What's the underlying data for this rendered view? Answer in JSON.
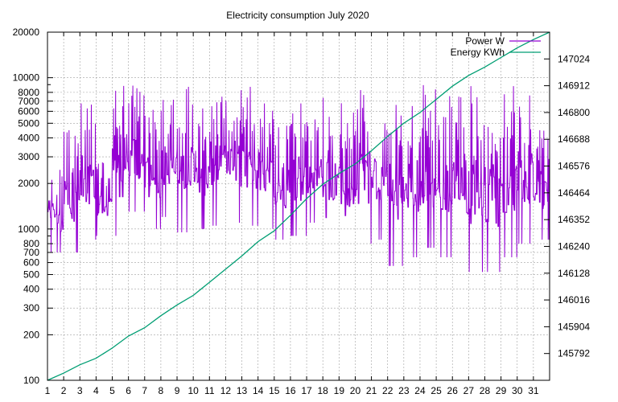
{
  "chart_data": {
    "type": "line",
    "title": "Electricity consumption July 2020",
    "x": {
      "ticks": [
        "1",
        "2",
        "3",
        "4",
        "5",
        "6",
        "7",
        "8",
        "9",
        "10",
        "11",
        "12",
        "13",
        "14",
        "15",
        "16",
        "17",
        "18",
        "19",
        "20",
        "21",
        "22",
        "23",
        "24",
        "25",
        "26",
        "27",
        "28",
        "29",
        "30",
        "31"
      ],
      "range": [
        1,
        32
      ]
    },
    "y_left": {
      "scale": "log",
      "range": [
        100,
        20000
      ],
      "ticks": [
        100,
        200,
        300,
        400,
        500,
        600,
        700,
        800,
        1000,
        2000,
        3000,
        4000,
        5000,
        6000,
        7000,
        8000,
        10000,
        20000
      ]
    },
    "y_right": {
      "range": [
        145680,
        147136
      ],
      "ticks": [
        145792,
        145904,
        146016,
        146128,
        146240,
        146352,
        146464,
        146576,
        146688,
        146800,
        146912,
        147024
      ]
    },
    "grid": true,
    "legend_position": "top-right",
    "series": [
      {
        "name": "Power W",
        "axis": "left",
        "color": "#9400d3",
        "day_envelope_min": [
          700,
          700,
          850,
          900,
          900,
          1300,
          1000,
          1200,
          950,
          1000,
          1050,
          1100,
          1050,
          1000,
          850,
          900,
          1100,
          600,
          650,
          800,
          850,
          570,
          650,
          750,
          650,
          600,
          520,
          520,
          650,
          800,
          850
        ],
        "day_envelope_max": [
          2500,
          4500,
          7000,
          3000,
          9000,
          9000,
          6500,
          8000,
          9000,
          7000,
          8000,
          9000,
          9000,
          7000,
          5500,
          7000,
          6000,
          9000,
          7000,
          9000,
          7000,
          8000,
          9000,
          9000,
          9000,
          8000,
          9000,
          8000,
          9000,
          9000,
          5000
        ]
      },
      {
        "name": "Energy KWh",
        "axis": "right",
        "color": "#009e73",
        "x": [
          1,
          2,
          3,
          4,
          5,
          6,
          7,
          8,
          9,
          10,
          11,
          12,
          13,
          14,
          15,
          16,
          17,
          18,
          19,
          20,
          21,
          22,
          23,
          24,
          25,
          26,
          27,
          28,
          29,
          30,
          31,
          32
        ],
        "y": [
          145680,
          145710,
          145745,
          145772,
          145815,
          145865,
          145900,
          145950,
          145995,
          146035,
          146090,
          146145,
          146200,
          146260,
          146305,
          146370,
          146440,
          146500,
          146545,
          146585,
          146640,
          146700,
          146755,
          146800,
          146855,
          146910,
          146955,
          146990,
          147030,
          147070,
          147105,
          147136
        ]
      }
    ]
  }
}
